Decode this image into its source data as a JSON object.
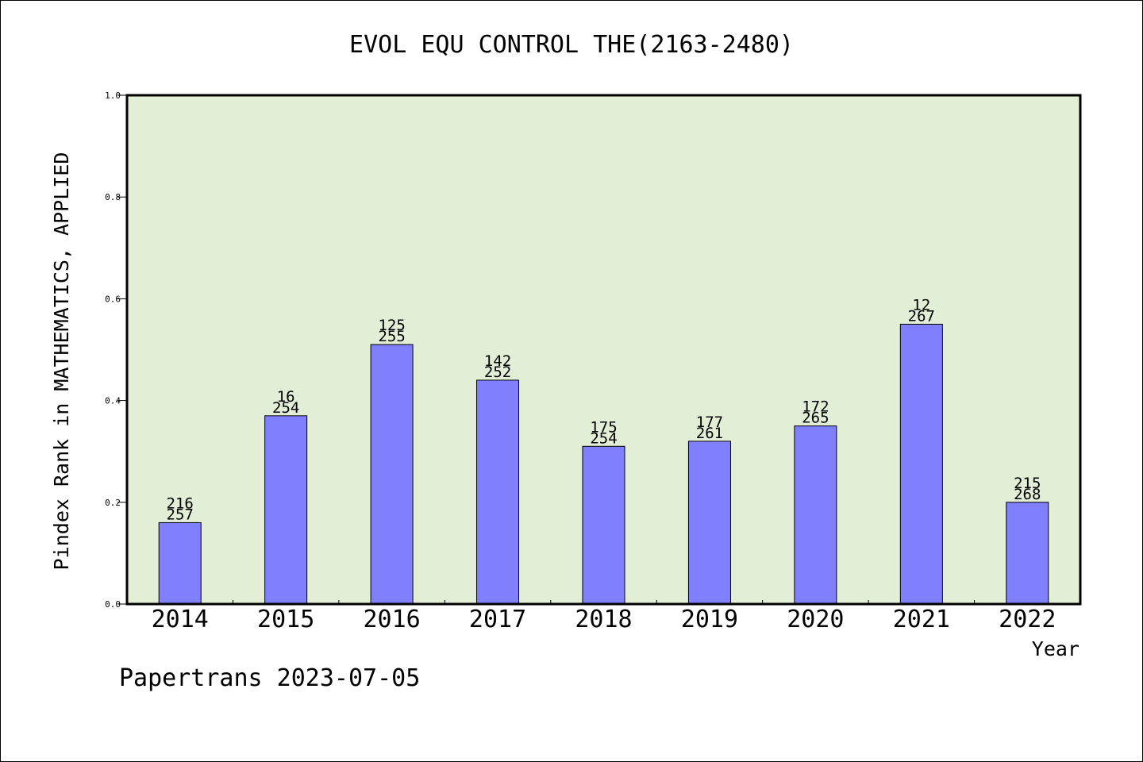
{
  "chart_data": {
    "type": "bar",
    "title": "EVOL EQU CONTROL THE(2163-2480)",
    "xlabel": "Year",
    "ylabel": "Pindex Rank in MATHEMATICS, APPLIED",
    "ylim": [
      0,
      1.0
    ],
    "yticks": [
      "0.0",
      "0.2",
      "0.4",
      "0.6",
      "0.8",
      "1.0"
    ],
    "categories": [
      "2014",
      "2015",
      "2016",
      "2017",
      "2018",
      "2019",
      "2020",
      "2021",
      "2022"
    ],
    "values": [
      0.16,
      0.37,
      0.51,
      0.44,
      0.31,
      0.32,
      0.35,
      0.55,
      0.2
    ],
    "labels_top": [
      "216",
      "16",
      "125",
      "142",
      "175",
      "177",
      "172",
      "12",
      "215"
    ],
    "labels_bottom": [
      "257",
      "254",
      "255",
      "252",
      "254",
      "261",
      "265",
      "267",
      "268"
    ],
    "grid": false,
    "colors": {
      "plot_background": "#e2efd6",
      "bar": "#8080ff",
      "bar_edge": "#000000"
    }
  },
  "footer": {
    "credit": "Papertrans 2023-07-05"
  }
}
